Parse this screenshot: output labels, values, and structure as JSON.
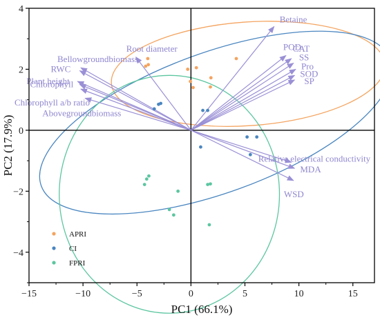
{
  "chart_data": {
    "type": "scatter",
    "title": "",
    "xlabel": "PC1 (66.1%)",
    "ylabel": "PC2 (17.9%)",
    "xlim": [
      -15,
      17
    ],
    "ylim": [
      -5,
      4
    ],
    "xticks": [
      -15,
      -10,
      -5,
      0,
      5,
      10,
      15
    ],
    "yticks": [
      -4,
      -2,
      0,
      2,
      4
    ],
    "grid": false,
    "zero_lines": true,
    "legend_position": "bottom-left",
    "series": [
      {
        "name": "APRI",
        "color": "#f4a460",
        "points": [
          [
            -4.2,
            2.1
          ],
          [
            -4.0,
            2.35
          ],
          [
            -3.95,
            2.15
          ],
          [
            -0.3,
            2.0
          ],
          [
            0.5,
            2.05
          ],
          [
            -0.05,
            1.6
          ],
          [
            0.2,
            1.4
          ],
          [
            1.8,
            1.42
          ],
          [
            1.85,
            1.72
          ],
          [
            4.2,
            2.35
          ]
        ],
        "ellipse": {
          "cx": 5.3,
          "cy": 1.85,
          "rx": 12.7,
          "ry": 1.7,
          "angle_deg": -4
        }
      },
      {
        "name": "CI",
        "color": "#4a86c0",
        "points": [
          [
            -3.0,
            0.85
          ],
          [
            -2.8,
            0.88
          ],
          [
            -3.4,
            0.7
          ],
          [
            1.1,
            0.65
          ],
          [
            1.55,
            0.65
          ],
          [
            0.9,
            -0.55
          ],
          [
            5.2,
            -0.22
          ],
          [
            6.1,
            -0.22
          ],
          [
            5.5,
            -0.8
          ]
        ],
        "ellipse": {
          "cx": 2.3,
          "cy": 0.25,
          "rx": 17.2,
          "ry": 2.3,
          "angle_deg": -20
        }
      },
      {
        "name": "FPRI",
        "color": "#5cc6a0",
        "points": [
          [
            -3.9,
            -1.5
          ],
          [
            -4.1,
            -1.6
          ],
          [
            -4.3,
            -1.78
          ],
          [
            -1.2,
            -2.0
          ],
          [
            -2.0,
            -2.6
          ],
          [
            -1.6,
            -2.78
          ],
          [
            1.8,
            -1.76
          ],
          [
            1.55,
            -1.78
          ],
          [
            1.7,
            -3.1
          ]
        ],
        "ellipse": {
          "cx": -2.0,
          "cy": -2.1,
          "rx": 10.2,
          "ry": 3.9,
          "angle_deg": 0
        }
      }
    ],
    "loadings": [
      {
        "label": "Betaine",
        "x": 7.7,
        "y": 3.4
      },
      {
        "label": "POD",
        "x": 8.8,
        "y": 2.45
      },
      {
        "label": "CAT",
        "x": 9.3,
        "y": 2.35
      },
      {
        "label": "SS",
        "x": 9.5,
        "y": 2.2
      },
      {
        "label": "Pro",
        "x": 9.7,
        "y": 2.0
      },
      {
        "label": "SOD",
        "x": 9.6,
        "y": 1.8
      },
      {
        "label": "SP",
        "x": 9.6,
        "y": 1.65
      },
      {
        "label": "Root diameter",
        "x": -5.1,
        "y": 2.4
      },
      {
        "label": "Bellowgroundbiomass",
        "x": -10.2,
        "y": 2.05
      },
      {
        "label": "RWC",
        "x": -10.3,
        "y": 1.95
      },
      {
        "label": "Plant height",
        "x": -10.5,
        "y": 1.6
      },
      {
        "label": "Chlorophyll",
        "x": -10.3,
        "y": 1.5
      },
      {
        "label": "Chlorophyll a/b ratio",
        "x": -10.2,
        "y": 1.35
      },
      {
        "label": "Abovegroundbiomass",
        "x": -9.8,
        "y": 1.05
      },
      {
        "label": "Relative electrical conductivity",
        "x": 9.3,
        "y": -1.05
      },
      {
        "label": "MDA",
        "x": 9.6,
        "y": -1.25
      },
      {
        "label": "WSD",
        "x": 9.5,
        "y": -1.65
      }
    ]
  }
}
